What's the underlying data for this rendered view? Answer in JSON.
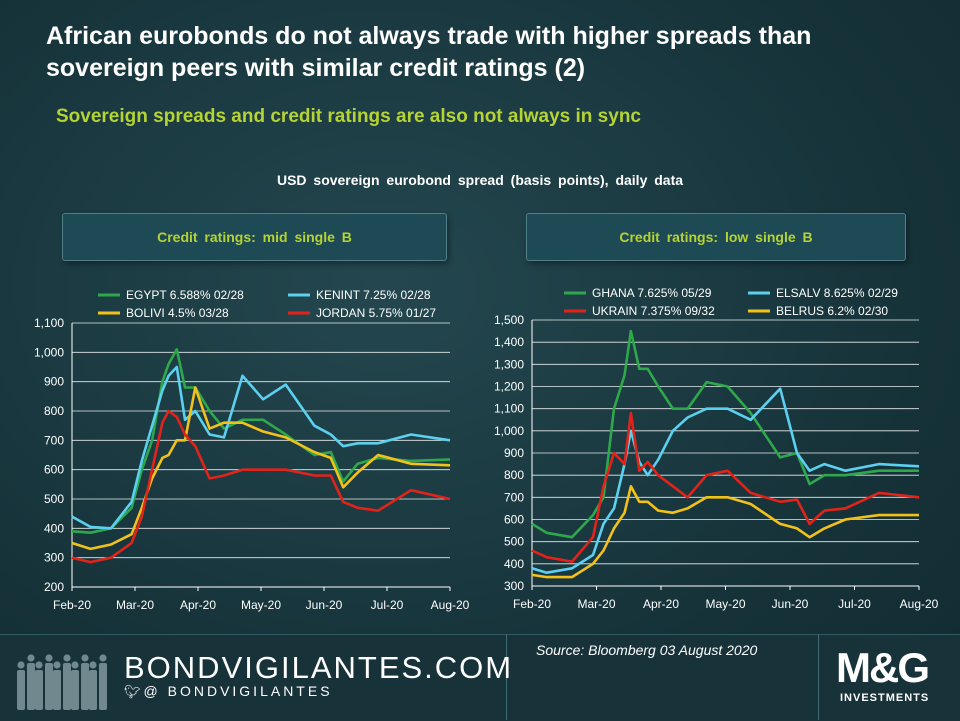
{
  "title": "African eurobonds do not always trade with higher spreads than sovereign peers with similar credit ratings (2)",
  "subtitle": "Sovereign spreads and credit ratings are also not always in sync",
  "caption": "USD sovereign eurobond spread (basis points), daily data",
  "source": "Source: Bloomberg 03 August 2020",
  "footer": {
    "brand": "BONDVIGILANTES.COM",
    "handle": "@ BONDVIGILANTES",
    "twitter_icon": "twitter-bird-icon",
    "logo_main": "M&G",
    "logo_sub": "INVESTMENTS"
  },
  "colors": {
    "green": "#2ea84a",
    "cyan": "#5bd0ef",
    "yellow": "#f2c21a",
    "red": "#e2231a",
    "accent": "#b5d334"
  },
  "chart_data": [
    {
      "type": "line",
      "panel_title": "Credit ratings: mid single B",
      "x_ticks": [
        "Feb-20",
        "Mar-20",
        "Apr-20",
        "May-20",
        "Jun-20",
        "Jul-20",
        "Aug-20"
      ],
      "ylim": [
        200,
        1100
      ],
      "y_ticks": [
        "200",
        "300",
        "400",
        "500",
        "600",
        "700",
        "800",
        "900",
        "1,000",
        "1,100"
      ],
      "grid": true,
      "legend_position": "top",
      "series": [
        {
          "name": "EGYPT 6.588% 02/28",
          "color": "#2ea84a",
          "x": [
            "2020-02-01",
            "2020-02-10",
            "2020-02-20",
            "2020-03-01",
            "2020-03-06",
            "2020-03-11",
            "2020-03-16",
            "2020-03-19",
            "2020-03-23",
            "2020-03-27",
            "2020-04-01",
            "2020-04-08",
            "2020-04-15",
            "2020-04-24",
            "2020-05-04",
            "2020-05-15",
            "2020-05-29",
            "2020-06-06",
            "2020-06-12",
            "2020-06-19",
            "2020-06-29",
            "2020-07-15",
            "2020-08-03"
          ],
          "values": [
            390,
            385,
            400,
            470,
            600,
            700,
            900,
            960,
            1010,
            880,
            880,
            800,
            740,
            770,
            770,
            720,
            650,
            660,
            560,
            620,
            640,
            630,
            635
          ]
        },
        {
          "name": "KENINT 7.25% 02/28",
          "color": "#5bd0ef",
          "x": [
            "2020-02-01",
            "2020-02-10",
            "2020-02-20",
            "2020-03-01",
            "2020-03-06",
            "2020-03-11",
            "2020-03-16",
            "2020-03-19",
            "2020-03-23",
            "2020-03-27",
            "2020-04-01",
            "2020-04-08",
            "2020-04-15",
            "2020-04-24",
            "2020-05-04",
            "2020-05-15",
            "2020-05-29",
            "2020-06-06",
            "2020-06-12",
            "2020-06-19",
            "2020-06-29",
            "2020-07-15",
            "2020-08-03"
          ],
          "values": [
            440,
            405,
            400,
            490,
            630,
            750,
            870,
            920,
            950,
            770,
            800,
            720,
            710,
            920,
            840,
            890,
            750,
            720,
            680,
            690,
            690,
            720,
            700
          ]
        },
        {
          "name": "BOLIVI 4.5% 03/28",
          "color": "#f2c21a",
          "x": [
            "2020-02-01",
            "2020-02-10",
            "2020-02-20",
            "2020-03-01",
            "2020-03-06",
            "2020-03-11",
            "2020-03-16",
            "2020-03-19",
            "2020-03-23",
            "2020-03-27",
            "2020-04-01",
            "2020-04-08",
            "2020-04-15",
            "2020-04-24",
            "2020-05-04",
            "2020-05-15",
            "2020-05-29",
            "2020-06-06",
            "2020-06-12",
            "2020-06-19",
            "2020-06-29",
            "2020-07-15",
            "2020-08-03"
          ],
          "values": [
            350,
            330,
            345,
            380,
            470,
            570,
            640,
            650,
            700,
            700,
            880,
            740,
            760,
            760,
            730,
            710,
            660,
            640,
            540,
            590,
            650,
            620,
            615
          ]
        },
        {
          "name": "JORDAN 5.75% 01/27",
          "color": "#e2231a",
          "x": [
            "2020-02-01",
            "2020-02-10",
            "2020-02-20",
            "2020-03-01",
            "2020-03-06",
            "2020-03-11",
            "2020-03-16",
            "2020-03-19",
            "2020-03-23",
            "2020-03-27",
            "2020-04-01",
            "2020-04-08",
            "2020-04-15",
            "2020-04-24",
            "2020-05-04",
            "2020-05-15",
            "2020-05-29",
            "2020-06-06",
            "2020-06-12",
            "2020-06-19",
            "2020-06-29",
            "2020-07-15",
            "2020-08-03"
          ],
          "values": [
            300,
            285,
            300,
            350,
            440,
            600,
            760,
            800,
            780,
            720,
            680,
            570,
            580,
            600,
            600,
            600,
            580,
            580,
            490,
            470,
            460,
            530,
            500
          ]
        }
      ]
    },
    {
      "type": "line",
      "panel_title": "Credit ratings: low single B",
      "x_ticks": [
        "Feb-20",
        "Mar-20",
        "Apr-20",
        "May-20",
        "Jun-20",
        "Jul-20",
        "Aug-20"
      ],
      "ylim": [
        300,
        1500
      ],
      "y_ticks": [
        "300",
        "400",
        "500",
        "600",
        "700",
        "800",
        "900",
        "1,000",
        "1,100",
        "1,200",
        "1,300",
        "1,400",
        "1,500"
      ],
      "grid": true,
      "legend_position": "top",
      "series": [
        {
          "name": "GHANA 7.625% 05/29",
          "color": "#2ea84a",
          "x": [
            "2020-02-01",
            "2020-02-08",
            "2020-02-20",
            "2020-03-01",
            "2020-03-06",
            "2020-03-11",
            "2020-03-16",
            "2020-03-19",
            "2020-03-23",
            "2020-03-27",
            "2020-04-01",
            "2020-04-08",
            "2020-04-15",
            "2020-04-24",
            "2020-05-04",
            "2020-05-15",
            "2020-05-29",
            "2020-06-06",
            "2020-06-12",
            "2020-06-19",
            "2020-06-29",
            "2020-07-15",
            "2020-08-03"
          ],
          "values": [
            580,
            540,
            520,
            620,
            700,
            1100,
            1250,
            1450,
            1280,
            1280,
            1200,
            1100,
            1100,
            1220,
            1200,
            1080,
            880,
            900,
            760,
            800,
            800,
            820,
            820
          ]
        },
        {
          "name": "ELSALV 8.625% 02/29",
          "color": "#5bd0ef",
          "x": [
            "2020-02-01",
            "2020-02-08",
            "2020-02-20",
            "2020-03-01",
            "2020-03-06",
            "2020-03-11",
            "2020-03-16",
            "2020-03-19",
            "2020-03-23",
            "2020-03-27",
            "2020-04-01",
            "2020-04-08",
            "2020-04-15",
            "2020-04-24",
            "2020-05-04",
            "2020-05-15",
            "2020-05-29",
            "2020-06-06",
            "2020-06-12",
            "2020-06-19",
            "2020-06-29",
            "2020-07-15",
            "2020-08-03"
          ],
          "values": [
            380,
            360,
            380,
            440,
            580,
            650,
            850,
            1000,
            860,
            800,
            870,
            1000,
            1060,
            1100,
            1100,
            1050,
            1190,
            900,
            820,
            850,
            820,
            850,
            840
          ]
        },
        {
          "name": "UKRAIN 7.375% 09/32",
          "color": "#e2231a",
          "x": [
            "2020-02-01",
            "2020-02-08",
            "2020-02-20",
            "2020-03-01",
            "2020-03-06",
            "2020-03-11",
            "2020-03-16",
            "2020-03-19",
            "2020-03-23",
            "2020-03-27",
            "2020-04-01",
            "2020-04-08",
            "2020-04-15",
            "2020-04-24",
            "2020-05-04",
            "2020-05-15",
            "2020-05-29",
            "2020-06-06",
            "2020-06-12",
            "2020-06-19",
            "2020-06-29",
            "2020-07-15",
            "2020-08-03"
          ],
          "values": [
            460,
            430,
            410,
            520,
            750,
            900,
            850,
            1080,
            820,
            860,
            800,
            750,
            700,
            800,
            820,
            720,
            680,
            690,
            580,
            640,
            650,
            720,
            700
          ]
        },
        {
          "name": "BELRUS 6.2% 02/30",
          "color": "#f2c21a",
          "x": [
            "2020-02-01",
            "2020-02-08",
            "2020-02-20",
            "2020-03-01",
            "2020-03-06",
            "2020-03-11",
            "2020-03-16",
            "2020-03-19",
            "2020-03-23",
            "2020-03-27",
            "2020-04-01",
            "2020-04-08",
            "2020-04-15",
            "2020-04-24",
            "2020-05-04",
            "2020-05-15",
            "2020-05-29",
            "2020-06-06",
            "2020-06-12",
            "2020-06-19",
            "2020-06-29",
            "2020-07-15",
            "2020-08-03"
          ],
          "values": [
            350,
            340,
            340,
            400,
            460,
            560,
            630,
            750,
            680,
            680,
            640,
            630,
            650,
            700,
            700,
            670,
            580,
            560,
            520,
            560,
            600,
            620,
            620
          ]
        }
      ]
    }
  ]
}
